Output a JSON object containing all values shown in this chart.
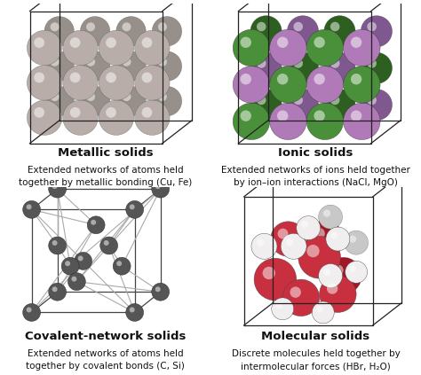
{
  "background_color": "#ffffff",
  "panels": [
    {
      "bold_title": "Metallic solids",
      "line1": "Extended networks of atoms held",
      "line2": "together by metallic bonding (Cu, Fe)"
    },
    {
      "bold_title": "Ionic solids",
      "line1": "Extended networks of ions held together",
      "line2": "by ion–ion interactions (NaCl, MgO)"
    },
    {
      "bold_title": "Covalent-network solids",
      "line1": "Extended networks of atoms held",
      "line2": "together by covalent bonds (C, Si)"
    },
    {
      "bold_title": "Molecular solids",
      "line1": "Discrete molecules held together by",
      "line2": "intermolecular forces (HBr, H₂O)"
    }
  ],
  "metallic_color": "#b8ada8",
  "metallic_dark": "#968f8a",
  "ionic_green": "#4a8f3a",
  "ionic_green_dark": "#2d6020",
  "ionic_purple": "#b07ab8",
  "ionic_purple_dark": "#805890",
  "covalent_color": "#555555",
  "covalent_bond": "#aaaaaa",
  "mol_red": "#c83040",
  "mol_red_dark": "#a01828",
  "mol_white": "#f0eeee",
  "mol_white_dark": "#c8c8c8",
  "cube_color": "#222222",
  "text_color": "#111111",
  "bold_fontsize": 9.5,
  "desc_fontsize": 7.5
}
